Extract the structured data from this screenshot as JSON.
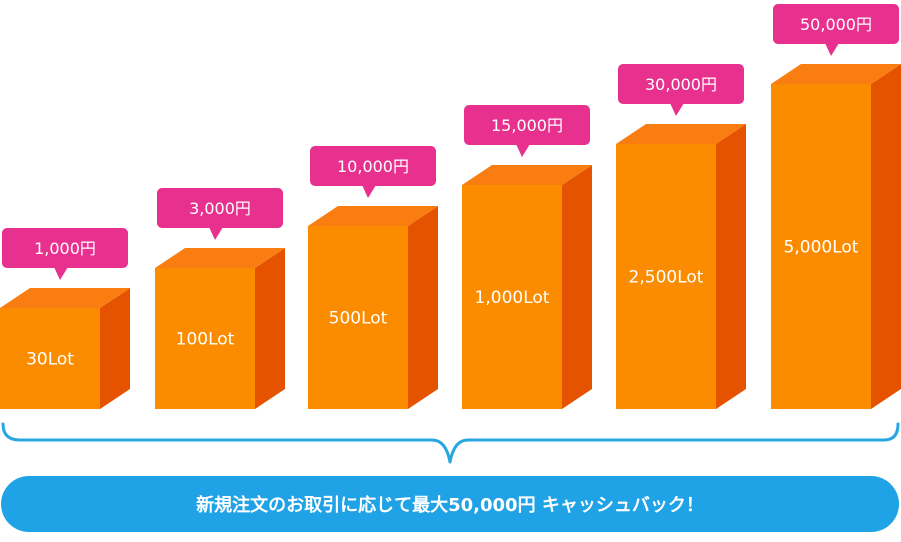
{
  "chart_data": {
    "type": "bar",
    "categories": [
      "30Lot",
      "100Lot",
      "500Lot",
      "1,000Lot",
      "2,500Lot",
      "5,000Lot"
    ],
    "values": [
      1000,
      3000,
      10000,
      15000,
      30000,
      50000
    ],
    "value_labels": [
      "1,000円",
      "3,000円",
      "10,000円",
      "15,000円",
      "30,000円",
      "50,000円"
    ],
    "title": "",
    "xlabel": "",
    "ylabel": "",
    "grid": false,
    "legend": "none"
  },
  "banner": {
    "text": "新規注文のお取引に応じて最大50,000円 キャッシュバック！"
  },
  "colors": {
    "bar_front": "#FB8C00",
    "bar_top": "#F97D10",
    "bar_side": "#E55200",
    "bubble": "#E8318E",
    "brace": "#27A6E1",
    "banner": "#1FA2E6"
  }
}
